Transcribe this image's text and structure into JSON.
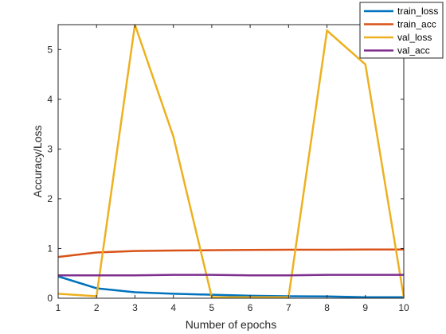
{
  "chart_data": {
    "type": "line",
    "xlabel": "Number of epochs",
    "ylabel": "Accuracy/Loss",
    "xlim": [
      1,
      10
    ],
    "ylim": [
      0,
      5.5
    ],
    "x": [
      1,
      2,
      3,
      4,
      5,
      6,
      7,
      8,
      9,
      10
    ],
    "xticks": [
      1,
      2,
      3,
      4,
      5,
      6,
      7,
      8,
      9,
      10
    ],
    "yticks": [
      0,
      1,
      2,
      3,
      4,
      5
    ],
    "grid": false,
    "legend_position": "top-right",
    "series": [
      {
        "name": "train_loss",
        "color": "#0072BD",
        "values": [
          0.44,
          0.2,
          0.12,
          0.09,
          0.07,
          0.05,
          0.04,
          0.035,
          0.02,
          0.02
        ]
      },
      {
        "name": "train_acc",
        "color": "#D95319",
        "values": [
          0.83,
          0.92,
          0.95,
          0.96,
          0.965,
          0.97,
          0.975,
          0.975,
          0.98,
          0.98
        ]
      },
      {
        "name": "val_loss",
        "color": "#EDB120",
        "values": [
          0.09,
          0.04,
          5.5,
          3.25,
          0.02,
          0.02,
          0.02,
          5.38,
          4.7,
          0.02
        ]
      },
      {
        "name": "val_acc",
        "color": "#7E2F8E",
        "values": [
          0.46,
          0.46,
          0.46,
          0.47,
          0.47,
          0.46,
          0.46,
          0.47,
          0.47,
          0.47
        ]
      }
    ]
  }
}
